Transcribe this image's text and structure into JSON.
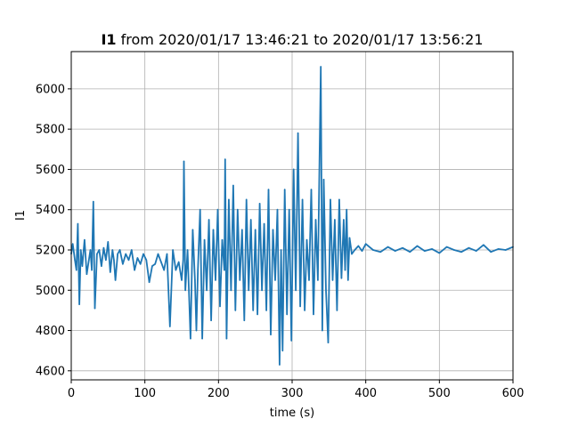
{
  "chart_data": {
    "type": "line",
    "title_bold": "I1",
    "title_rest": " from 2020/01/17 13:46:21 to 2020/01/17 13:56:21",
    "xlabel": "time (s)",
    "ylabel": "I1",
    "xlim": [
      0,
      600
    ],
    "ylim": [
      4555,
      6185
    ],
    "xticks": [
      0,
      100,
      200,
      300,
      400,
      500,
      600
    ],
    "yticks": [
      4600,
      4800,
      5000,
      5200,
      5400,
      5600,
      5800,
      6000
    ],
    "xtick_labels": [
      "0",
      "100",
      "200",
      "300",
      "400",
      "500",
      "600"
    ],
    "ytick_labels": [
      "4600",
      "4800",
      "5000",
      "5200",
      "5400",
      "5600",
      "5800",
      "6000"
    ],
    "grid": true,
    "color": "#1f77b4",
    "series": [
      {
        "x": [
          0,
          2,
          5,
          7,
          9,
          11,
          13,
          15,
          18,
          21,
          24,
          26,
          28,
          30,
          32,
          35,
          38,
          41,
          44,
          47,
          50,
          53,
          56,
          58,
          60,
          63,
          66,
          70,
          74,
          78,
          82,
          86,
          90,
          94,
          98,
          102,
          106,
          110,
          114,
          118,
          122,
          126,
          130,
          134,
          138,
          142,
          146,
          150,
          152,
          153,
          155,
          158,
          162,
          165,
          168,
          170,
          172,
          175,
          178,
          181,
          184,
          187,
          190,
          193,
          196,
          199,
          202,
          205,
          208,
          209,
          211,
          214,
          217,
          220,
          223,
          226,
          229,
          232,
          235,
          238,
          241,
          244,
          247,
          250,
          253,
          256,
          259,
          262,
          265,
          268,
          271,
          274,
          277,
          280,
          283,
          285,
          287,
          290,
          293,
          296,
          299,
          302,
          305,
          308,
          311,
          314,
          317,
          320,
          323,
          326,
          329,
          332,
          335,
          337,
          339,
          341,
          343,
          346,
          349,
          352,
          355,
          358,
          361,
          364,
          367,
          370,
          372,
          374,
          376,
          378,
          381,
          385,
          390,
          395,
          400,
          410,
          420,
          430,
          440,
          450,
          460,
          470,
          480,
          490,
          500,
          510,
          520,
          530,
          540,
          550,
          560,
          570,
          580,
          590,
          600
        ],
        "y": [
          5180,
          5230,
          5150,
          5100,
          5330,
          4930,
          5200,
          5120,
          5250,
          5080,
          5150,
          5200,
          5100,
          5440,
          4910,
          5180,
          5200,
          5120,
          5210,
          5150,
          5240,
          5090,
          5200,
          5150,
          5050,
          5180,
          5200,
          5130,
          5180,
          5150,
          5200,
          5100,
          5160,
          5130,
          5180,
          5150,
          5040,
          5120,
          5130,
          5180,
          5140,
          5100,
          5180,
          4820,
          5200,
          5100,
          5140,
          5050,
          5150,
          5640,
          5000,
          5200,
          4760,
          5300,
          5050,
          4800,
          5100,
          5400,
          4760,
          5250,
          5000,
          5350,
          4850,
          5300,
          5050,
          5400,
          4920,
          5250,
          5100,
          5650,
          4760,
          5450,
          5000,
          5520,
          4900,
          5400,
          5050,
          5300,
          4850,
          5450,
          5000,
          5350,
          4900,
          5300,
          4880,
          5430,
          5000,
          5330,
          4900,
          5500,
          4780,
          5300,
          5050,
          5400,
          4630,
          5200,
          4700,
          5500,
          4880,
          5400,
          4750,
          5600,
          5000,
          5780,
          4920,
          5450,
          4900,
          5250,
          5050,
          5500,
          4880,
          5350,
          5050,
          5600,
          6110,
          4800,
          5550,
          5000,
          4740,
          5450,
          5050,
          5350,
          4900,
          5450,
          5060,
          5350,
          5100,
          5400,
          5050,
          5260,
          5180,
          5200,
          5220,
          5195,
          5230,
          5200,
          5190,
          5215,
          5195,
          5210,
          5190,
          5220,
          5195,
          5205,
          5185,
          5215,
          5200,
          5190,
          5210,
          5195,
          5225,
          5190,
          5205,
          5200,
          5215
        ]
      }
    ]
  }
}
